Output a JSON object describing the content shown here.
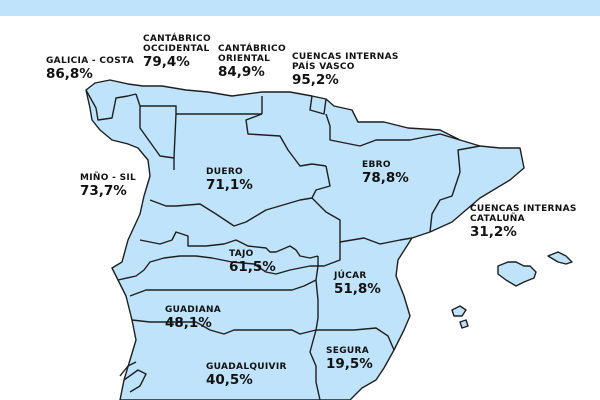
{
  "colors": {
    "land": "#bfe3fa",
    "border": "#1f1f1f",
    "header": "#bfe3fa",
    "background": "#ffffff"
  },
  "basins": {
    "galicia_costa": {
      "name": "GALICIA - COSTA",
      "value": "86,8%"
    },
    "cantabrico_occidental": {
      "name1": "CANTÁBRICO",
      "name2": "OCCIDENTAL",
      "value": "79,4%"
    },
    "cantabrico_oriental": {
      "name1": "CANTÁBRICO",
      "name2": "ORIENTAL",
      "value": "84,9%"
    },
    "pais_vasco": {
      "name1": "CUENCAS INTERNAS",
      "name2": "PAÍS VASCO",
      "value": "95,2%"
    },
    "mino_sil": {
      "name": "MIÑO - SIL",
      "value": "73,7%"
    },
    "duero": {
      "name": "DUERO",
      "value": "71,1%"
    },
    "ebro": {
      "name": "EBRO",
      "value": "78,8%"
    },
    "cataluna": {
      "name1": "CUENCAS INTERNAS",
      "name2": "CATALUÑA",
      "value": "31,2%"
    },
    "tajo": {
      "name": "TAJO",
      "value": "61,5%"
    },
    "jucar": {
      "name": "JÚCAR",
      "value": "51,8%"
    },
    "guadiana": {
      "name": "GUADIANA",
      "value": "48,1%"
    },
    "segura": {
      "name": "SEGURA",
      "value": "19,5%"
    },
    "guadalquivir": {
      "name": "GUADALQUIVIR",
      "value": "40,5%"
    }
  }
}
